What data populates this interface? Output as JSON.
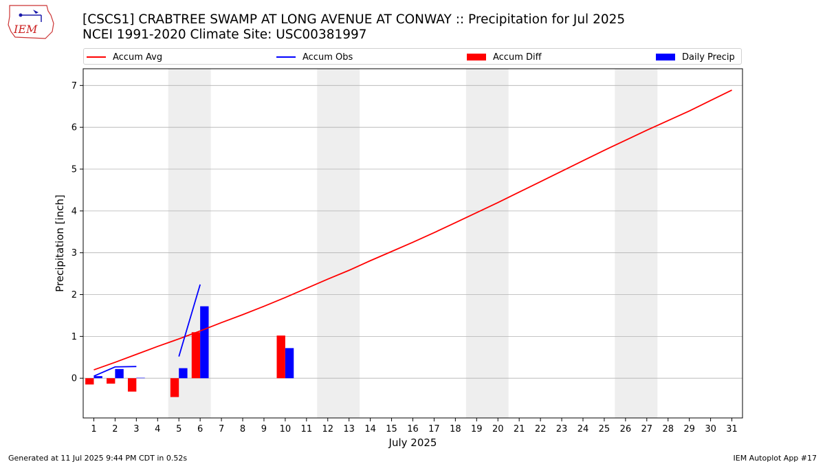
{
  "header": {
    "title_line1": "[CSCS1] CRABTREE SWAMP AT LONG AVENUE AT CONWAY :: Precipitation for Jul 2025",
    "title_line2": "NCEI 1991-2020 Climate Site: USC00381997"
  },
  "logo": {
    "text": "IEM"
  },
  "legend": {
    "items": [
      {
        "label": "Accum Avg",
        "kind": "line",
        "color": "#ff0000"
      },
      {
        "label": "Accum Obs",
        "kind": "line",
        "color": "#0000ff"
      },
      {
        "label": "Accum Diff",
        "kind": "patch",
        "color": "#ff0000"
      },
      {
        "label": "Daily Precip",
        "kind": "patch",
        "color": "#0000ff"
      }
    ],
    "placement": "top, above plot"
  },
  "footer": {
    "left": "Generated at 11 Jul 2025 9:44 PM CDT in 0.52s",
    "right": "IEM Autoplot App #17"
  },
  "chart_data": {
    "type": "bar",
    "xlabel": "July 2025",
    "ylabel": "Precipitation [inch]",
    "x_ticks": [
      1,
      2,
      3,
      4,
      5,
      6,
      7,
      8,
      9,
      10,
      11,
      12,
      13,
      14,
      15,
      16,
      17,
      18,
      19,
      20,
      21,
      22,
      23,
      24,
      25,
      26,
      27,
      28,
      29,
      30,
      31
    ],
    "xlim": [
      0.5,
      31.5
    ],
    "ylim": [
      -0.95,
      7.4
    ],
    "y_ticks": [
      0,
      1,
      2,
      3,
      4,
      5,
      6,
      7
    ],
    "grid": "horizontal",
    "weekend_shading": [
      [
        4.5,
        6.5
      ],
      [
        11.5,
        13.5
      ],
      [
        18.5,
        20.5
      ],
      [
        25.5,
        27.5
      ]
    ],
    "series": [
      {
        "name": "Accum Avg",
        "type": "line",
        "color": "#ff0000",
        "x": [
          1,
          2,
          3,
          4,
          5,
          6,
          7,
          8,
          9,
          10,
          11,
          12,
          13,
          14,
          15,
          16,
          17,
          18,
          19,
          20,
          21,
          22,
          23,
          24,
          25,
          26,
          27,
          28,
          29,
          30,
          31
        ],
        "values": [
          0.2,
          0.38,
          0.57,
          0.76,
          0.94,
          1.13,
          1.33,
          1.52,
          1.72,
          1.93,
          2.15,
          2.37,
          2.58,
          2.81,
          3.03,
          3.25,
          3.48,
          3.72,
          3.96,
          4.2,
          4.45,
          4.7,
          4.95,
          5.2,
          5.45,
          5.69,
          5.93,
          6.16,
          6.39,
          6.64,
          6.89
        ]
      },
      {
        "name": "Accum Obs",
        "type": "line",
        "color": "#0000ff",
        "segments": [
          {
            "x": [
              1,
              2,
              3
            ],
            "values": [
              0.05,
              0.27,
              0.28
            ]
          },
          {
            "x": [
              5,
              6
            ],
            "values": [
              0.52,
              2.24
            ]
          }
        ]
      },
      {
        "name": "Accum Diff",
        "type": "bar",
        "color": "#ff0000",
        "x": [
          1,
          2,
          3,
          5,
          6,
          10
        ],
        "values": [
          -0.15,
          -0.13,
          -0.32,
          -0.45,
          1.1,
          1.02
        ]
      },
      {
        "name": "Daily Precip",
        "type": "bar",
        "color": "#0000ff",
        "x": [
          1,
          2,
          3,
          5,
          6,
          10
        ],
        "values": [
          0.05,
          0.22,
          0.01,
          0.24,
          1.72,
          0.72
        ]
      }
    ]
  }
}
